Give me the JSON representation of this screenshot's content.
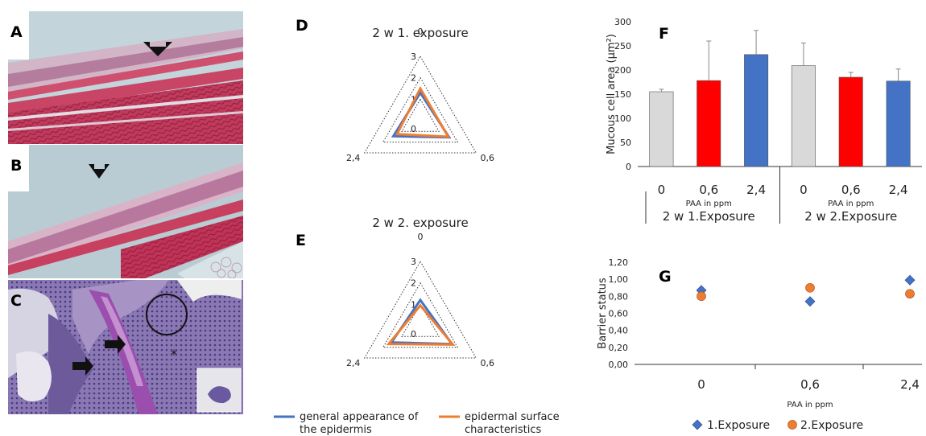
{
  "panels": {
    "A": "A",
    "B": "B",
    "C": "C",
    "D": "D",
    "E": "E",
    "F": "F",
    "G": "G"
  },
  "colors": {
    "general": "#4472c4",
    "surface": "#ed7d31",
    "control": "#d9d9d9",
    "low": "#ff0000",
    "high": "#4472c4",
    "exposure1": "#4472c4",
    "exposure2": "#ed7d31"
  },
  "chart_data": [
    {
      "type": "radar",
      "panel": "D",
      "title": "2 w 1. exposure",
      "axes": [
        "0",
        "0,6",
        "2,4"
      ],
      "rings": [
        "0",
        "1",
        "2",
        "3"
      ],
      "ylim": [
        0,
        3
      ],
      "series": [
        {
          "name": "general appearance of the epidermis",
          "values": [
            1.3,
            1.55,
            1.45
          ]
        },
        {
          "name": "epidermal surface characteristics",
          "values": [
            1.5,
            1.5,
            1.25
          ]
        }
      ]
    },
    {
      "type": "radar",
      "panel": "E",
      "title": "2 w 2. exposure",
      "axes": [
        "0",
        "0,6",
        "2,4"
      ],
      "rings": [
        "0",
        "1",
        "2",
        "3"
      ],
      "ylim": [
        0,
        3
      ],
      "series": [
        {
          "name": "general appearance of the epidermis",
          "values": [
            1.2,
            1.7,
            1.55
          ]
        },
        {
          "name": "epidermal surface characteristics",
          "values": [
            0.95,
            1.75,
            1.7
          ]
        }
      ]
    },
    {
      "type": "bar",
      "panel": "F",
      "ylabel": "Mucous cell area (µm²)",
      "ylim": [
        0,
        300
      ],
      "yticks": [
        "0",
        "50",
        "100",
        "150",
        "200",
        "250",
        "300"
      ],
      "categories": [
        "0",
        "0,6",
        "2,4",
        "0",
        "0,6",
        "2,4"
      ],
      "values": [
        155,
        178,
        232,
        209,
        185,
        177
      ],
      "errors": [
        5,
        82,
        50,
        47,
        10,
        25
      ],
      "bar_colors": [
        "control",
        "low",
        "high",
        "control",
        "low",
        "high"
      ],
      "xlabel": "PAA in ppm",
      "groups": [
        "2 w 1.Exposure",
        "2 w 2.Exposure"
      ]
    },
    {
      "type": "scatter",
      "panel": "G",
      "ylabel": "Barrier status",
      "xlabel": "PAA in ppm",
      "ylim": [
        0,
        1.2
      ],
      "yticks": [
        "0,00",
        "0,20",
        "0,40",
        "0,60",
        "0,80",
        "1,00",
        "1,20"
      ],
      "categories": [
        "0",
        "0,6",
        "2,4"
      ],
      "series": [
        {
          "name": "1.Exposure",
          "marker": "diamond",
          "values": [
            0.87,
            0.74,
            0.99
          ]
        },
        {
          "name": "2.Exposure",
          "marker": "circle",
          "values": [
            0.8,
            0.9,
            0.83
          ]
        }
      ]
    }
  ]
}
